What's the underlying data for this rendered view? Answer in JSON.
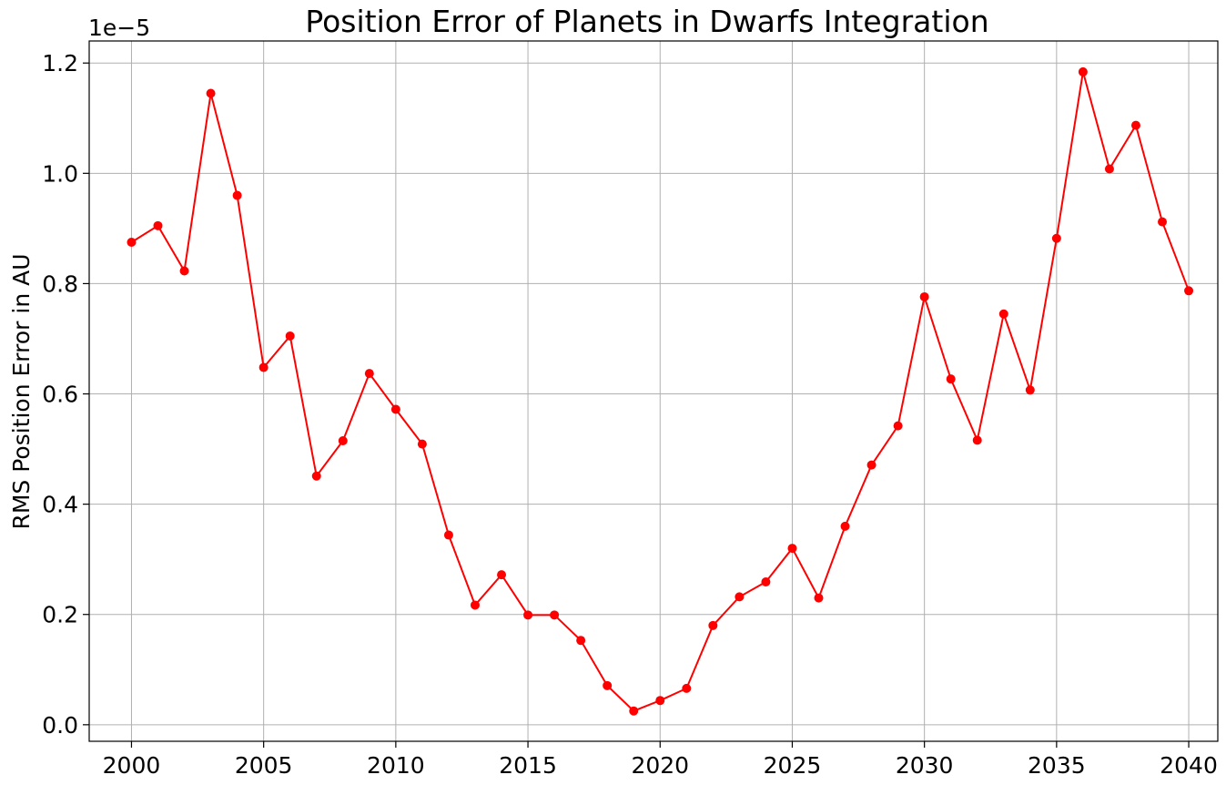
{
  "chart_data": {
    "type": "line",
    "title": "Position Error of Planets in Dwarfs Integration",
    "xlabel": "",
    "ylabel": "RMS Position Error in AU",
    "y_exponent_label": "1e−5",
    "xlim": [
      1998.4,
      2041.1
    ],
    "ylim": [
      -0.03,
      1.24
    ],
    "x_ticks": [
      2000,
      2005,
      2010,
      2015,
      2020,
      2025,
      2030,
      2035,
      2040
    ],
    "x_tick_labels": [
      "2000",
      "2005",
      "2010",
      "2015",
      "2020",
      "2025",
      "2030",
      "2035",
      "2040"
    ],
    "y_ticks": [
      0.0,
      0.2,
      0.4,
      0.6,
      0.8,
      1.0,
      1.2
    ],
    "y_tick_labels": [
      "0.0",
      "0.2",
      "0.4",
      "0.6",
      "0.8",
      "1.0",
      "1.2"
    ],
    "grid": true,
    "line_color": "#ff0000",
    "series": [
      {
        "x": [
          2000,
          2001,
          2002,
          2003,
          2004,
          2005,
          2006,
          2007,
          2008,
          2009,
          2010,
          2011,
          2012,
          2013,
          2014,
          2015,
          2016,
          2017,
          2018,
          2019,
          2020,
          2021,
          2022,
          2023,
          2024,
          2025,
          2026,
          2027,
          2028,
          2029,
          2030,
          2031,
          2032,
          2033,
          2034,
          2035,
          2036,
          2037,
          2038,
          2039,
          2040
        ],
        "values": [
          0.875,
          0.905,
          0.823,
          1.145,
          0.96,
          0.648,
          0.705,
          0.451,
          0.515,
          0.637,
          0.572,
          0.509,
          0.344,
          0.217,
          0.272,
          0.199,
          0.199,
          0.153,
          0.071,
          0.025,
          0.044,
          0.066,
          0.18,
          0.232,
          0.259,
          0.32,
          0.23,
          0.36,
          0.471,
          0.542,
          0.776,
          0.627,
          0.516,
          0.745,
          0.607,
          0.882,
          1.184,
          1.008,
          1.087,
          0.912,
          0.787
        ]
      }
    ]
  }
}
